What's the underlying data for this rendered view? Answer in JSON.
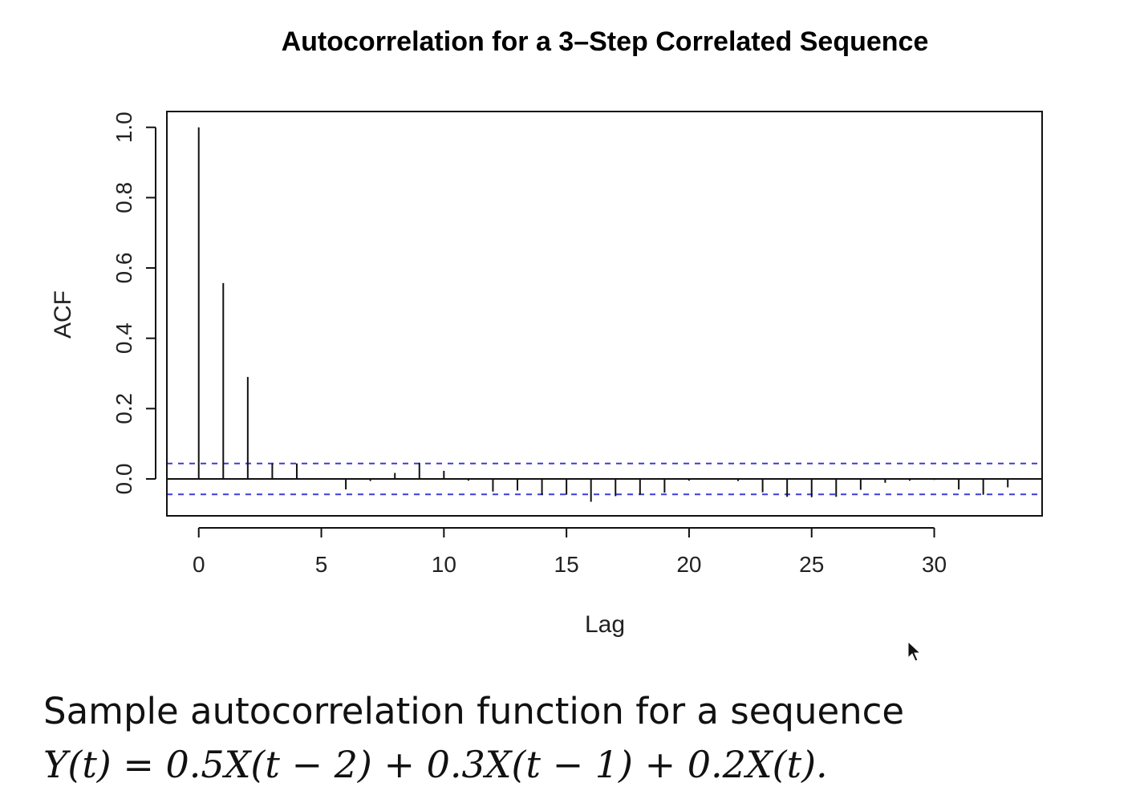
{
  "chart_data": {
    "type": "bar",
    "title": "Autocorrelation for a 3–Step Correlated Sequence",
    "xlabel": "Lag",
    "ylabel": "ACF",
    "xlim": [
      -1.3,
      34.4
    ],
    "ylim": [
      -0.105,
      1.045
    ],
    "x_ticks": [
      0,
      5,
      10,
      15,
      20,
      25,
      30
    ],
    "x_tick_labels": [
      "0",
      "5",
      "10",
      "15",
      "20",
      "25",
      "30"
    ],
    "y_ticks": [
      0.0,
      0.2,
      0.4,
      0.6,
      0.8,
      1.0
    ],
    "y_tick_labels": [
      "0.0",
      "0.2",
      "0.4",
      "0.6",
      "0.8",
      "1.0"
    ],
    "confidence_bounds": [
      0.044,
      -0.044
    ],
    "confidence_color": "#3b3bdb",
    "grid": false,
    "lags": [
      0,
      1,
      2,
      3,
      4,
      5,
      6,
      7,
      8,
      9,
      10,
      11,
      12,
      13,
      14,
      15,
      16,
      17,
      18,
      19,
      20,
      21,
      22,
      23,
      24,
      25,
      26,
      27,
      28,
      29,
      30,
      31,
      32,
      33
    ],
    "acf": [
      1.0,
      0.557,
      0.29,
      0.044,
      0.044,
      0.0,
      -0.03,
      -0.006,
      0.017,
      0.046,
      0.023,
      -0.005,
      -0.036,
      -0.033,
      -0.046,
      -0.045,
      -0.065,
      -0.049,
      -0.045,
      -0.039,
      -0.005,
      -0.001,
      -0.006,
      -0.038,
      -0.051,
      -0.052,
      -0.051,
      -0.031,
      -0.011,
      -0.005,
      -0.003,
      -0.03,
      -0.045,
      -0.024
    ]
  },
  "caption": {
    "line1": "Sample autocorrelation function for a sequence",
    "line2": "Y(t) = 0.5X(t − 2) + 0.3X(t − 1) + 0.2X(t)."
  }
}
